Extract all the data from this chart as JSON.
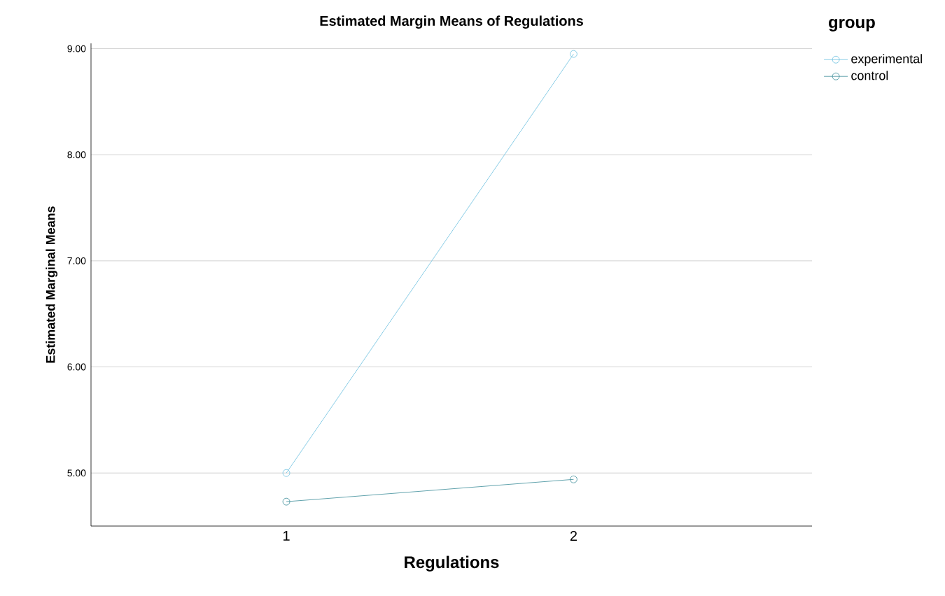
{
  "chart_data": {
    "type": "line",
    "title": "Estimated Margin Means of Regulations",
    "xlabel": "Regulations",
    "ylabel": "Estimated Marginal Means",
    "legend_title": "group",
    "categories": [
      "1",
      "2"
    ],
    "series": [
      {
        "name": "experimental",
        "color": "#6cc0e0",
        "values": [
          5.0,
          8.95
        ]
      },
      {
        "name": "control",
        "color": "#3a8c98",
        "values": [
          4.73,
          4.94
        ]
      }
    ],
    "ylim": [
      4.5,
      9.05
    ],
    "yticks": [
      {
        "value": 5,
        "label": "5.00"
      },
      {
        "value": 6,
        "label": "6.00"
      },
      {
        "value": 7,
        "label": "7.00"
      },
      {
        "value": 8,
        "label": "8.00"
      },
      {
        "value": 9,
        "label": "9.00"
      }
    ],
    "grid": "y",
    "legend": "top right",
    "marker": "circle",
    "line_style": "solid"
  }
}
